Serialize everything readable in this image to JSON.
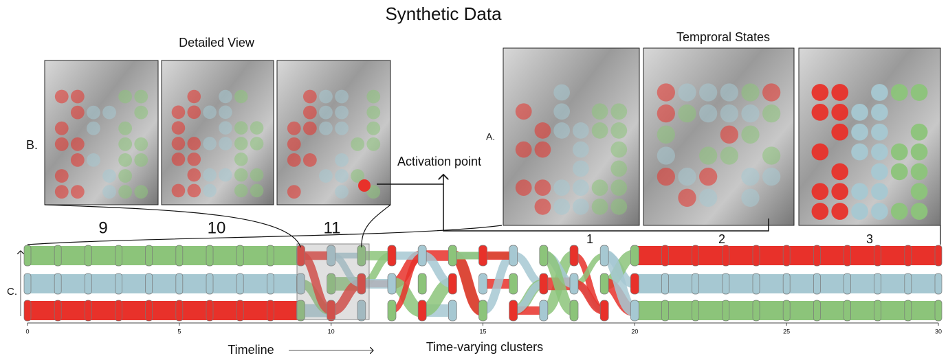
{
  "title": "Synthetic Data",
  "detailed_view": {
    "title": "Detailed  View",
    "label": "B.",
    "frames": [
      "9",
      "10",
      "11"
    ]
  },
  "temporal_states": {
    "title": "Temproral States",
    "label": "A.",
    "frames": [
      "1",
      "2",
      "3"
    ]
  },
  "annotation": "Activation point",
  "timeline": {
    "label": "C.",
    "ticks": [
      0,
      5,
      10,
      15,
      20,
      25,
      30
    ],
    "axis_label": "Timeline",
    "caption": "Time-varying clusters"
  }
}
